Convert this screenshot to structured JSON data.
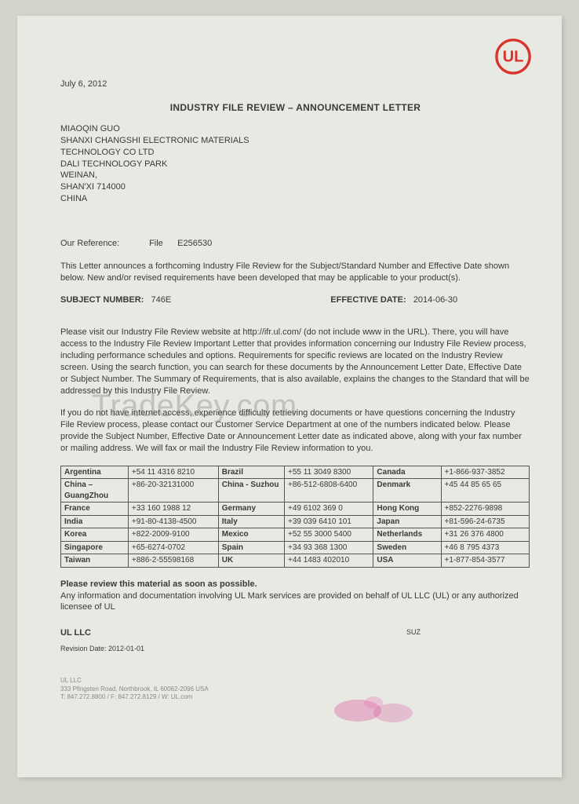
{
  "date": "July 6, 2012",
  "title": "INDUSTRY FILE REVIEW – ANNOUNCEMENT LETTER",
  "address": {
    "name": "MIAOQIN  GUO",
    "company": "SHANXI CHANGSHI ELECTRONIC MATERIALS",
    "line2": "TECHNOLOGY CO LTD",
    "line3": "DALI TECHNOLOGY PARK",
    "city": "WEINAN,",
    "region": "SHAN'XI 714000",
    "country": "CHINA"
  },
  "reference": {
    "label": "Our Reference:",
    "file_label": "File",
    "file_no": "E256530"
  },
  "para1": "This Letter announces a forthcoming Industry File Review for the Subject/Standard Number and Effective Date shown below.  New and/or revised requirements have been developed that may be applicable to your product(s).",
  "subject": {
    "label": "SUBJECT NUMBER:",
    "value": "746E"
  },
  "effective": {
    "label": "EFFECTIVE DATE:",
    "value": "2014-06-30"
  },
  "para2a": "Please visit our Industry File Review website at ",
  "para2_url": "http://ifr.ul.com/",
  "para2b": " (do not include www in the URL). There, you will have access to the Industry File Review Important Letter that provides information concerning our Industry File Review process, including performance schedules and options. Requirements for specific reviews are located on the Industry Review screen. Using the search function, you can search for these documents by the Announcement Letter Date, Effective Date or Subject Number. The Summary of Requirements, that is also available, explains the changes to the Standard that will be addressed by this Industry File Review.",
  "para3": "If you do not have internet access, experience difficulty retrieving documents or have questions concerning the Industry File Review process, please contact our Customer Service Department at one of the numbers indicated below.  Please provide the Subject Number, Effective Date or Announcement Letter date as indicated above, along with your fax number or mailing address.  We will fax or mail the Industry File Review information to you.",
  "phones": [
    [
      {
        "c": "Argentina",
        "p": "+54 11 4316 8210"
      },
      {
        "c": "Brazil",
        "p": "+55 11 3049 8300"
      },
      {
        "c": "Canada",
        "p": "+1-866-937-3852"
      }
    ],
    [
      {
        "c": "China – GuangZhou",
        "p": "+86-20-32131000"
      },
      {
        "c": "China - Suzhou",
        "p": "+86-512-6808-6400"
      },
      {
        "c": "Denmark",
        "p": "+45 44 85 65 65"
      }
    ],
    [
      {
        "c": "France",
        "p": "+33 160 1988 12"
      },
      {
        "c": "Germany",
        "p": "+49 6102 369 0"
      },
      {
        "c": "Hong Kong",
        "p": "+852-2276-9898"
      }
    ],
    [
      {
        "c": "India",
        "p": "+91-80-4138-4500"
      },
      {
        "c": "Italy",
        "p": "+39 039 6410 101"
      },
      {
        "c": "Japan",
        "p": "+81-596-24-6735"
      }
    ],
    [
      {
        "c": "Korea",
        "p": "+822-2009-9100"
      },
      {
        "c": "Mexico",
        "p": "+52 55 3000 5400"
      },
      {
        "c": "Netherlands",
        "p": "+31 26 376 4800"
      }
    ],
    [
      {
        "c": "Singapore",
        "p": "+65-6274-0702"
      },
      {
        "c": "Spain",
        "p": "+34 93 368 1300"
      },
      {
        "c": "Sweden",
        "p": "+46 8 795 4373"
      }
    ],
    [
      {
        "c": "Taiwan",
        "p": "+886-2-55598168"
      },
      {
        "c": "UK",
        "p": "+44 1483 402010"
      },
      {
        "c": "USA",
        "p": "+1-877-854-3577"
      }
    ]
  ],
  "review_bold": "Please review this material as soon as possible.",
  "review_text": "Any information and documentation involving UL Mark services are provided on behalf of UL LLC (UL) or any authorized licensee of UL",
  "signer": "UL LLC",
  "suz": "SUZ",
  "revision": "Revision Date: 2012-01-01",
  "footer": {
    "l1": "UL LLC",
    "l2": "333 Pfingsten Road, Northbrook, IL 60062-2096 USA",
    "l3": "T: 847.272.8800 / F: 847.272.8129 / W: UL.com"
  },
  "watermark": "TradeKey.com",
  "colors": {
    "logo": "#d9332a",
    "paper": "#e8e9e3",
    "text": "#3a3a38",
    "stain": "#d94f9c"
  }
}
